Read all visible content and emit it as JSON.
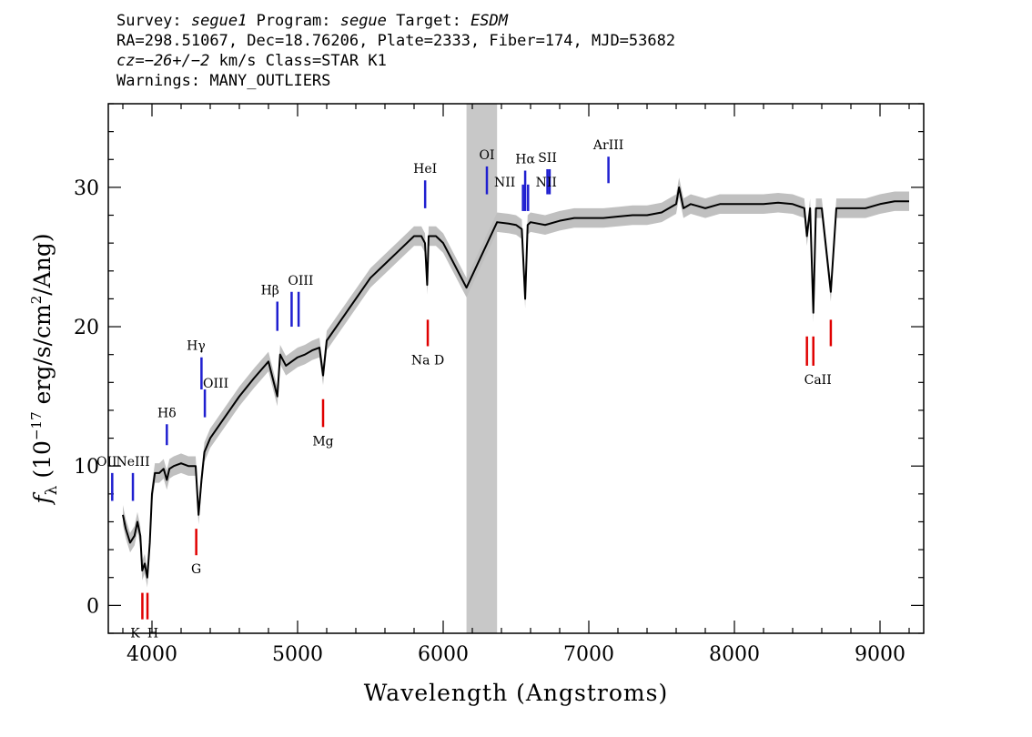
{
  "header": {
    "line1": {
      "survey_label": "Survey:",
      "survey": "segue1",
      "program_label": "Program:",
      "program": "segue",
      "target_label": "Target:",
      "target": "ESDM"
    },
    "line2": "RA=298.51067, Dec=18.76206, Plate=2333, Fiber=174, MJD=53682",
    "line3": {
      "cz": "cz=−26+/−2",
      "rest": " km/s Class=STAR K1"
    },
    "line4": "Warnings: MANY_OUTLIERS"
  },
  "colors": {
    "spectrum": "#000000",
    "error_band": "#c0c0c0",
    "masked_region": "#c8c8c8",
    "emission": "#1f1fd0",
    "absorption": "#e00000"
  },
  "chart_data": {
    "type": "line",
    "xlabel": "Wavelength (Angstroms)",
    "ylabel": "fλ (10⁻¹⁷ erg/s/cm²/Ang)",
    "ylabel_parts": {
      "f": "f",
      "sub": "λ",
      "pre": " (10",
      "exp": "−17",
      "mid": " erg/s/cm",
      "exp2": "2",
      "post": "/Ang)"
    },
    "xlim": [
      3700,
      9300
    ],
    "ylim": [
      -2,
      36
    ],
    "xticks": [
      4000,
      5000,
      6000,
      7000,
      8000,
      9000
    ],
    "yticks": [
      0,
      10,
      20,
      30
    ],
    "masked_region": [
      6160,
      6370
    ],
    "series": [
      {
        "x": [
          3800,
          3820,
          3850,
          3880,
          3900,
          3920,
          3933,
          3950,
          3968,
          3985,
          4000,
          4020,
          4050,
          4080,
          4102,
          4120,
          4150,
          4200,
          4250,
          4300,
          4320,
          4340,
          4360,
          4400,
          4500,
          4600,
          4700,
          4800,
          4861,
          4880,
          4920,
          4960,
          5000,
          5050,
          5100,
          5150,
          5175,
          5200,
          5300,
          5400,
          5500,
          5600,
          5700,
          5800,
          5850,
          5875,
          5890,
          5900,
          5950,
          6000,
          6050,
          6100,
          6160,
          6370,
          6450,
          6500,
          6540,
          6563,
          6580,
          6600,
          6700,
          6800,
          6900,
          7000,
          7100,
          7200,
          7300,
          7400,
          7500,
          7550,
          7600,
          7620,
          7650,
          7700,
          7800,
          7900,
          8000,
          8100,
          8200,
          8300,
          8400,
          8480,
          8498,
          8520,
          8542,
          8560,
          8600,
          8662,
          8700,
          8800,
          8900,
          9000,
          9100,
          9200
        ],
        "y": [
          6.5,
          5.5,
          4.5,
          5.0,
          6.0,
          5.0,
          2.5,
          3.0,
          2.0,
          4.5,
          8.0,
          9.5,
          9.5,
          9.8,
          9.0,
          9.8,
          10.0,
          10.2,
          10.0,
          10.0,
          6.5,
          9.0,
          11.0,
          12.0,
          13.5,
          15.0,
          16.3,
          17.5,
          15.0,
          18.0,
          17.2,
          17.5,
          17.8,
          18.0,
          18.3,
          18.5,
          16.5,
          19.0,
          20.5,
          22.0,
          23.5,
          24.5,
          25.5,
          26.5,
          26.5,
          26.0,
          23.0,
          26.5,
          26.5,
          26.0,
          25.0,
          24.0,
          22.8,
          27.5,
          27.4,
          27.3,
          27.0,
          22.0,
          27.3,
          27.5,
          27.3,
          27.6,
          27.8,
          27.8,
          27.8,
          27.9,
          28.0,
          28.0,
          28.2,
          28.5,
          28.8,
          30.0,
          28.5,
          28.8,
          28.5,
          28.8,
          28.8,
          28.8,
          28.8,
          28.9,
          28.8,
          28.5,
          26.5,
          28.5,
          21.0,
          28.5,
          28.5,
          22.5,
          28.5,
          28.5,
          28.5,
          28.8,
          29.0,
          29.0
        ]
      }
    ],
    "emission_lines": [
      {
        "label": "OII",
        "x": 3727,
        "y1": 7.5,
        "y2": 9.5
      },
      {
        "label": "NeIII",
        "x": 3869,
        "y1": 7.5,
        "y2": 9.5
      },
      {
        "label": "Hδ",
        "x": 4102,
        "y1": 11.5,
        "y2": 13.0
      },
      {
        "label": "Hγ",
        "x": 4340,
        "y1": 15.5,
        "y2": 17.8
      },
      {
        "label": "OIII",
        "x": 4363,
        "y1": 13.5,
        "y2": 15.5
      },
      {
        "label": "Hβ",
        "x": 4861,
        "y1": 19.7,
        "y2": 21.8
      },
      {
        "label": "OIII",
        "x": 4959,
        "y1": 20.0,
        "y2": 22.5
      },
      {
        "label": "OIII",
        "x": 5007,
        "y1": 20.0,
        "y2": 22.5
      },
      {
        "label": "HeI",
        "x": 5876,
        "y1": 28.5,
        "y2": 30.5
      },
      {
        "label": "OI",
        "x": 6300,
        "y1": 29.5,
        "y2": 31.5
      },
      {
        "label": "NII",
        "x": 6548,
        "y1": 28.3,
        "y2": 30.2
      },
      {
        "label": "Hα",
        "x": 6563,
        "y1": 28.3,
        "y2": 31.2
      },
      {
        "label": "NII",
        "x": 6583,
        "y1": 28.3,
        "y2": 30.2
      },
      {
        "label": "SII",
        "x": 6716,
        "y1": 29.5,
        "y2": 31.3
      },
      {
        "label": "SII",
        "x": 6731,
        "y1": 29.5,
        "y2": 31.3
      },
      {
        "label": "ArIII",
        "x": 7135,
        "y1": 30.3,
        "y2": 32.2
      }
    ],
    "absorption_lines": [
      {
        "label": "K",
        "x": 3934,
        "y1": -1.0,
        "y2": 0.9
      },
      {
        "label": "H",
        "x": 3969,
        "y1": -1.0,
        "y2": 0.9
      },
      {
        "label": "G",
        "x": 4304,
        "y1": 3.6,
        "y2": 5.5
      },
      {
        "label": "Mg",
        "x": 5175,
        "y1": 12.8,
        "y2": 14.8
      },
      {
        "label": "Na D",
        "x": 5894,
        "y1": 18.6,
        "y2": 20.5
      },
      {
        "label": "CaII",
        "x": 8498,
        "y1": 17.2,
        "y2": 19.3
      },
      {
        "label": "CaII",
        "x": 8542,
        "y1": 17.2,
        "y2": 19.3
      },
      {
        "label": "CaII",
        "x": 8662,
        "y1": 18.6,
        "y2": 20.5
      }
    ]
  }
}
